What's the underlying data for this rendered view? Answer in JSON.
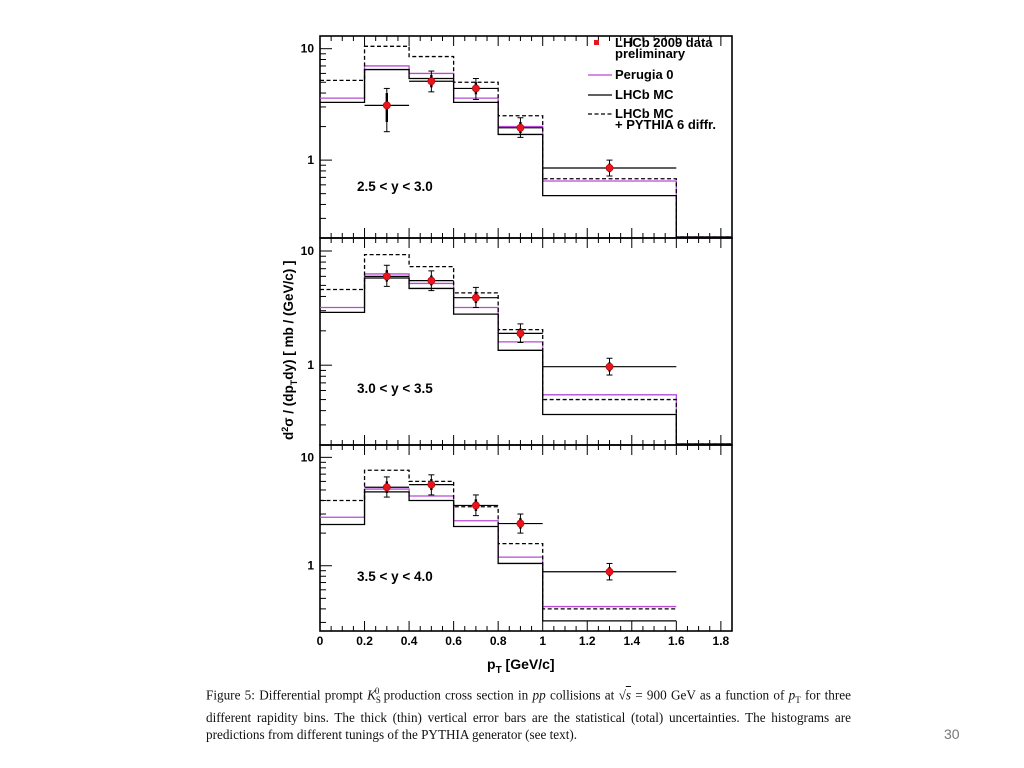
{
  "page": {
    "slide_number": "30"
  },
  "caption": {
    "label": "Figure 5:",
    "pre1": "Differential prompt ",
    "K": "K",
    "K_sub": "S",
    "K_sup": "0",
    "pre2": " production cross section in ",
    "pp": "pp",
    "pre3": " collisions at √",
    "s": "s",
    "pre4": " = 900 GeV as a function of ",
    "p": "p",
    "p_sub": "T",
    "rest": " for three different rapidity bins. The thick (thin) vertical error bars are the statistical (total) uncertainties. The histograms are predictions from different tunings of the PYTHIA generator (see text)."
  },
  "chart_data": {
    "type": "line",
    "xlabel_main": "p",
    "xlabel_sub": "T",
    "xlabel_rest": " [GeV/c]",
    "ylabel_parts": [
      "d",
      "2",
      "σ / (dp",
      "T",
      "dy)   [ mb / (GeV/c) ]"
    ],
    "x_ticks": [
      "0",
      "0.2",
      "0.4",
      "0.6",
      "0.8",
      "1",
      "1.2",
      "1.4",
      "1.6",
      "1.8"
    ],
    "xlim": [
      0,
      1.85
    ],
    "y_scale": "log",
    "legend": {
      "position": "top-right",
      "entries": [
        {
          "label": "LHCb 2009 data",
          "label2": "preliminary",
          "style": "marker",
          "color": "#e8141e"
        },
        {
          "label": "Perugia 0",
          "style": "solid",
          "color": "#b84bd6"
        },
        {
          "label": "LHCb MC",
          "style": "solid",
          "color": "#000000"
        },
        {
          "label": "LHCb MC",
          "label2": "+ PYTHIA 6 diffr.",
          "style": "dashed",
          "color": "#000000"
        }
      ]
    },
    "bin_edges": [
      0,
      0.2,
      0.4,
      0.6,
      0.8,
      1.0,
      1.6,
      1.85
    ],
    "panels": [
      {
        "label": "2.5 < y < 3.0",
        "ylim": [
          0.2,
          13
        ],
        "y_ticks": [
          "10",
          "1"
        ],
        "y_tick_values": [
          10,
          1
        ],
        "series": {
          "perugia": [
            3.6,
            7.0,
            6.0,
            3.6,
            2.0,
            0.65,
            0.15
          ],
          "lhcb_mc": [
            3.3,
            6.5,
            5.4,
            3.3,
            1.7,
            0.48,
            0.15
          ],
          "lhcb_mc_diffr": [
            5.2,
            10.5,
            8.5,
            5.0,
            2.5,
            0.68,
            0.15
          ]
        },
        "data": [
          {
            "x": 0.3,
            "xerr": 0.1,
            "y": 3.1,
            "stat": [
              2.2,
              4.0
            ],
            "tot": [
              1.8,
              4.4
            ]
          },
          {
            "x": 0.5,
            "xerr": 0.1,
            "y": 5.1,
            "stat": [
              4.5,
              5.8
            ],
            "tot": [
              4.1,
              6.3
            ]
          },
          {
            "x": 0.7,
            "xerr": 0.1,
            "y": 4.4,
            "stat": [
              3.9,
              5.0
            ],
            "tot": [
              3.5,
              5.4
            ]
          },
          {
            "x": 0.9,
            "xerr": 0.1,
            "y": 1.95,
            "stat": [
              1.75,
              2.2
            ],
            "tot": [
              1.6,
              2.4
            ]
          },
          {
            "x": 1.3,
            "xerr": 0.3,
            "y": 0.85,
            "stat": [
              0.78,
              0.93
            ],
            "tot": [
              0.72,
              1.0
            ]
          }
        ]
      },
      {
        "label": "3.0 < y < 3.5",
        "ylim": [
          0.2,
          13
        ],
        "y_ticks": [
          "10",
          "1"
        ],
        "y_tick_values": [
          10,
          1
        ],
        "series": {
          "perugia": [
            3.2,
            6.3,
            5.2,
            3.2,
            1.6,
            0.55,
            0.15
          ],
          "lhcb_mc": [
            2.9,
            5.8,
            4.7,
            2.8,
            1.35,
            0.37,
            0.15
          ],
          "lhcb_mc_diffr": [
            4.6,
            9.3,
            7.3,
            4.3,
            2.05,
            0.5,
            0.15
          ]
        },
        "data": [
          {
            "x": 0.3,
            "xerr": 0.1,
            "y": 6.0,
            "stat": [
              5.4,
              6.8
            ],
            "tot": [
              4.9,
              7.5
            ]
          },
          {
            "x": 0.5,
            "xerr": 0.1,
            "y": 5.5,
            "stat": [
              5.0,
              6.1
            ],
            "tot": [
              4.5,
              6.7
            ]
          },
          {
            "x": 0.7,
            "xerr": 0.1,
            "y": 3.9,
            "stat": [
              3.5,
              4.4
            ],
            "tot": [
              3.2,
              4.8
            ]
          },
          {
            "x": 0.9,
            "xerr": 0.1,
            "y": 1.9,
            "stat": [
              1.72,
              2.1
            ],
            "tot": [
              1.58,
              2.3
            ]
          },
          {
            "x": 1.3,
            "xerr": 0.3,
            "y": 0.97,
            "stat": [
              0.88,
              1.06
            ],
            "tot": [
              0.82,
              1.15
            ]
          }
        ]
      },
      {
        "label": "3.5 < y < 4.0",
        "ylim": [
          0.25,
          13
        ],
        "y_ticks": [
          "10",
          "1"
        ],
        "y_tick_values": [
          10,
          1
        ],
        "series": {
          "perugia": [
            2.8,
            5.1,
            4.4,
            2.6,
            1.2,
            0.42
          ],
          "lhcb_mc": [
            2.4,
            4.8,
            4.0,
            2.3,
            1.05,
            0.31
          ],
          "lhcb_mc_diffr": [
            4.0,
            7.6,
            6.0,
            3.5,
            1.6,
            0.4
          ]
        },
        "data": [
          {
            "x": 0.3,
            "xerr": 0.1,
            "y": 5.3,
            "stat": [
              4.7,
              6.0
            ],
            "tot": [
              4.3,
              6.6
            ]
          },
          {
            "x": 0.5,
            "xerr": 0.1,
            "y": 5.6,
            "stat": [
              5.0,
              6.3
            ],
            "tot": [
              4.5,
              6.9
            ]
          },
          {
            "x": 0.7,
            "xerr": 0.1,
            "y": 3.6,
            "stat": [
              3.2,
              4.1
            ],
            "tot": [
              2.9,
              4.5
            ]
          },
          {
            "x": 0.9,
            "xerr": 0.1,
            "y": 2.45,
            "stat": [
              2.2,
              2.75
            ],
            "tot": [
              2.0,
              3.0
            ]
          },
          {
            "x": 1.3,
            "xerr": 0.3,
            "y": 0.88,
            "stat": [
              0.8,
              0.97
            ],
            "tot": [
              0.74,
              1.05
            ]
          }
        ]
      }
    ]
  }
}
